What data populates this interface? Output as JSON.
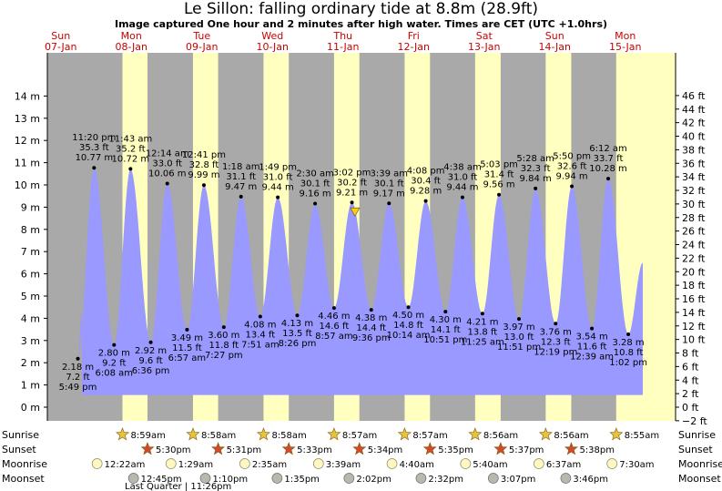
{
  "title": "Le Sillon: falling  ordinary tide at 8.8m (28.9ft)",
  "subtitle": "Image captured One hour and 2 minutes after high water. Times are CET (UTC +1.0hrs)",
  "chart_data": {
    "type": "area",
    "y_left_unit": "m",
    "y_right_unit": "ft",
    "ylim_m": [
      -0.6,
      14.6
    ],
    "left_ticks": [
      "0 m",
      "1 m",
      "2 m",
      "3 m",
      "4 m",
      "5 m",
      "6 m",
      "7 m",
      "8 m",
      "9 m",
      "10 m",
      "11 m",
      "12 m",
      "13 m",
      "14 m"
    ],
    "right_ticks": [
      "−2 ft",
      "0 ft",
      "2 ft",
      "4 ft",
      "6 ft",
      "8 ft",
      "10 ft",
      "12 ft",
      "14 ft",
      "16 ft",
      "18 ft",
      "20 ft",
      "22 ft",
      "24 ft",
      "26 ft",
      "28 ft",
      "30 ft",
      "32 ft",
      "34 ft",
      "36 ft",
      "38 ft",
      "40 ft",
      "42 ft",
      "44 ft",
      "46 ft"
    ],
    "days": [
      {
        "dow": "Sun",
        "date": "07-Jan"
      },
      {
        "dow": "Mon",
        "date": "08-Jan"
      },
      {
        "dow": "Tue",
        "date": "09-Jan"
      },
      {
        "dow": "Wed",
        "date": "10-Jan"
      },
      {
        "dow": "Thu",
        "date": "11-Jan"
      },
      {
        "dow": "Fri",
        "date": "12-Jan"
      },
      {
        "dow": "Sat",
        "date": "13-Jan"
      },
      {
        "dow": "Sun",
        "date": "14-Jan"
      },
      {
        "dow": "Mon",
        "date": "15-Jan"
      }
    ],
    "tides": [
      {
        "type": "low",
        "time": "5:49 pm",
        "ft": "7.2 ft",
        "m": 2.18,
        "m_label": "2.18 m"
      },
      {
        "type": "high",
        "time": "11:20 pm",
        "ft": "35.3 ft",
        "m": 10.77,
        "m_label": "10.77 m"
      },
      {
        "type": "low",
        "time": "6:08 am",
        "ft": "9.2 ft",
        "m": 2.8,
        "m_label": "2.80 m"
      },
      {
        "type": "high",
        "time": "11:43 am",
        "ft": "35.2 ft",
        "m": 10.72,
        "m_label": "10.72 m"
      },
      {
        "type": "low",
        "time": "6:36 pm",
        "ft": "9.6 ft",
        "m": 2.92,
        "m_label": "2.92 m"
      },
      {
        "type": "high",
        "time": "12:14 am",
        "ft": "33.0 ft",
        "m": 10.06,
        "m_label": "10.06 m"
      },
      {
        "type": "low",
        "time": "6:57 am",
        "ft": "11.5 ft",
        "m": 3.49,
        "m_label": "3.49 m"
      },
      {
        "type": "high",
        "time": "12:41 pm",
        "ft": "32.8 ft",
        "m": 9.99,
        "m_label": "9.99 m"
      },
      {
        "type": "low",
        "time": "7:27 pm",
        "ft": "11.8 ft",
        "m": 3.6,
        "m_label": "3.60 m"
      },
      {
        "type": "high",
        "time": "1:18 am",
        "ft": "31.1 ft",
        "m": 9.47,
        "m_label": "9.47 m"
      },
      {
        "type": "low",
        "time": "7:51 am",
        "ft": "13.4 ft",
        "m": 4.08,
        "m_label": "4.08 m"
      },
      {
        "type": "high",
        "time": "1:49 pm",
        "ft": "31.0 ft",
        "m": 9.44,
        "m_label": "9.44 m"
      },
      {
        "type": "low",
        "time": "8:26 pm",
        "ft": "13.5 ft",
        "m": 4.13,
        "m_label": "4.13 m"
      },
      {
        "type": "high",
        "time": "2:30 am",
        "ft": "30.1 ft",
        "m": 9.16,
        "m_label": "9.16 m"
      },
      {
        "type": "low",
        "time": "8:57 am",
        "ft": "14.6 ft",
        "m": 4.46,
        "m_label": "4.46 m"
      },
      {
        "type": "high",
        "time": "3:02 pm",
        "ft": "30.2 ft",
        "m": 9.21,
        "m_label": "9.21 m"
      },
      {
        "type": "low",
        "time": "9:36 pm",
        "ft": "14.4 ft",
        "m": 4.38,
        "m_label": "4.38 m"
      },
      {
        "type": "high",
        "time": "3:39 am",
        "ft": "30.1 ft",
        "m": 9.17,
        "m_label": "9.17 m"
      },
      {
        "type": "low",
        "time": "10:14 am",
        "ft": "14.8 ft",
        "m": 4.5,
        "m_label": "4.50 m"
      },
      {
        "type": "high",
        "time": "4:08 pm",
        "ft": "30.4 ft",
        "m": 9.28,
        "m_label": "9.28 m"
      },
      {
        "type": "low",
        "time": "10:51 pm",
        "ft": "14.1 ft",
        "m": 4.3,
        "m_label": "4.30 m"
      },
      {
        "type": "high",
        "time": "4:38 am",
        "ft": "31.0 ft",
        "m": 9.44,
        "m_label": "9.44 m"
      },
      {
        "type": "low",
        "time": "11:25 am",
        "ft": "13.8 ft",
        "m": 4.21,
        "m_label": "4.21 m"
      },
      {
        "type": "high",
        "time": "5:03 pm",
        "ft": "31.4 ft",
        "m": 9.56,
        "m_label": "9.56 m"
      },
      {
        "type": "low",
        "time": "11:51 pm",
        "ft": "13.0 ft",
        "m": 3.97,
        "m_label": "3.97 m"
      },
      {
        "type": "high",
        "time": "5:28 am",
        "ft": "32.3 ft",
        "m": 9.84,
        "m_label": "9.84 m"
      },
      {
        "type": "low",
        "time": "12:19 pm",
        "ft": "12.3 ft",
        "m": 3.76,
        "m_label": "3.76 m"
      },
      {
        "type": "high",
        "time": "5:50 pm",
        "ft": "32.6 ft",
        "m": 9.94,
        "m_label": "9.94 m"
      },
      {
        "type": "low",
        "time": "12:39 am",
        "ft": "11.6 ft",
        "m": 3.54,
        "m_label": "3.54 m"
      },
      {
        "type": "high",
        "time": "6:12 am",
        "ft": "33.7 ft",
        "m": 10.28,
        "m_label": "10.28 m"
      },
      {
        "type": "low",
        "time": "1:02 pm",
        "ft": "10.8 ft",
        "m": 3.28,
        "m_label": "3.28 m"
      }
    ],
    "current": {
      "m": 8.8,
      "ft": 28.9,
      "state": "falling"
    },
    "rows": {
      "sunrise": {
        "label": "Sunrise",
        "times": [
          "8:59am",
          "8:58am",
          "8:58am",
          "8:57am",
          "8:57am",
          "8:56am",
          "8:56am",
          "8:55am"
        ]
      },
      "sunset": {
        "label": "Sunset",
        "times": [
          "5:30pm",
          "5:31pm",
          "5:33pm",
          "5:34pm",
          "5:35pm",
          "5:37pm",
          "5:38pm"
        ]
      },
      "moonrise": {
        "label": "Moonrise",
        "times": [
          "12:22am",
          "1:29am",
          "2:35am",
          "3:39am",
          "4:40am",
          "5:40am",
          "6:37am",
          "7:30am"
        ]
      },
      "moonset": {
        "label": "Moonset",
        "times": [
          "12:45pm",
          "1:10pm",
          "1:35pm",
          "2:02pm",
          "2:32pm",
          "3:07pm",
          "3:46pm"
        ]
      }
    },
    "phase_note": "Last Quarter | 11:26pm",
    "colors": {
      "night": "#a9a9a9",
      "day": "#ffffc0",
      "water": "#9999ff",
      "day_label": "#cc0000",
      "sun_star": "#e8c43a",
      "sunset_star": "#d24a2a",
      "moonrise": "#fff6c0",
      "moonset": "#b8b8b0"
    }
  }
}
